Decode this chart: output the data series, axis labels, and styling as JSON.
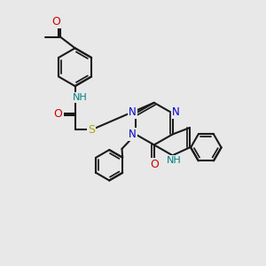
{
  "background_color": "#e8e8e8",
  "bond_color": "#1a1a1a",
  "bond_width": 1.5,
  "atom_colors": {
    "N": "#0000cc",
    "O": "#cc0000",
    "S": "#aaaa00",
    "NH": "#008080",
    "C": "#1a1a1a"
  },
  "figsize": [
    3.0,
    3.0
  ],
  "dpi": 100,
  "xlim": [
    0,
    10
  ],
  "ylim": [
    0,
    10
  ]
}
